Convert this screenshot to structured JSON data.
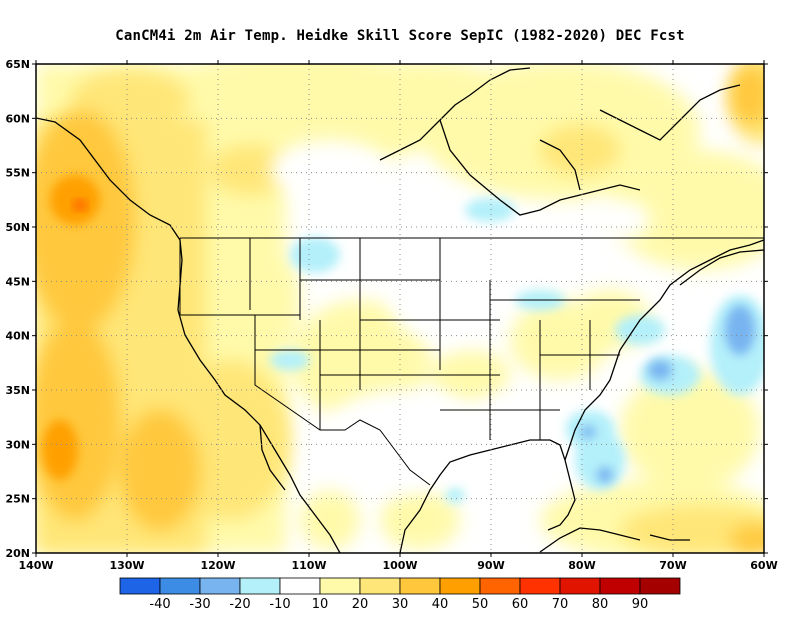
{
  "title": "CanCM4i  2m Air Temp. Heidke Skill Score SepIC (1982-2020) DEC Fcst",
  "map": {
    "lon_range": [
      -140,
      -60
    ],
    "lat_range": [
      20,
      65
    ],
    "lat_labels": [
      "65N",
      "60N",
      "55N",
      "50N",
      "45N",
      "40N",
      "35N",
      "30N",
      "25N",
      "20N"
    ],
    "lon_labels": [
      "140W",
      "130W",
      "120W",
      "110W",
      "100W",
      "90W",
      "80W",
      "70W",
      "60W"
    ],
    "grid": "dotted"
  },
  "colorbar": {
    "colors": [
      "#1e64e6",
      "#3c8ce6",
      "#78b4f0",
      "#b4f0fa",
      "#ffffff",
      "#fffaaa",
      "#ffe678",
      "#ffc83c",
      "#ffa000",
      "#ff6400",
      "#ff3200",
      "#e11400",
      "#c00000",
      "#a50000"
    ],
    "labels": [
      "-40",
      "-30",
      "-20",
      "-10",
      "10",
      "20",
      "30",
      "40",
      "50",
      "60",
      "70",
      "80",
      "90"
    ]
  }
}
